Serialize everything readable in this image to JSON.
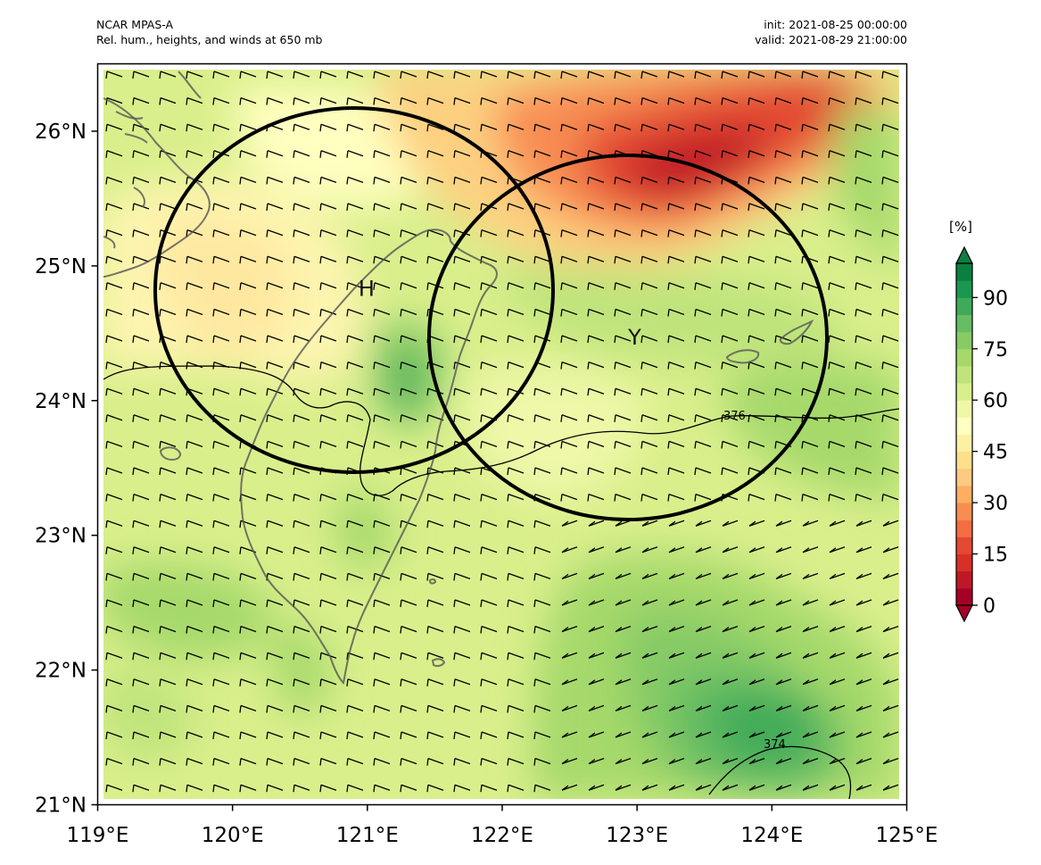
{
  "header": {
    "model": "NCAR MPAS-A",
    "subtitle": "Rel. hum., heights, and winds at 650 mb",
    "init": "init: 2021-08-25 00:00:00",
    "valid": "valid: 2021-08-29 21:00:00"
  },
  "map": {
    "lon_range": [
      119,
      125
    ],
    "lat_range": [
      21,
      26.5
    ],
    "lon_ticks": [
      "119°E",
      "120°E",
      "121°E",
      "122°E",
      "123°E",
      "124°E",
      "125°E"
    ],
    "lat_ticks": [
      "21°N",
      "22°N",
      "23°N",
      "24°N",
      "25°N",
      "26°N"
    ],
    "markers": [
      {
        "label": "H",
        "lon": 121.0,
        "lat": 24.83
      },
      {
        "label": "Y",
        "lon": 123.0,
        "lat": 24.47
      }
    ],
    "circles": [
      {
        "name": "circle-H",
        "center_lon": 120.93,
        "center_lat": 24.83,
        "radius_deg": 1.48
      },
      {
        "name": "circle-Y",
        "center_lon": 122.95,
        "center_lat": 24.45,
        "radius_deg": 1.48
      }
    ],
    "height_contours": [
      {
        "label": "376",
        "label_lon": 123.75,
        "label_lat": 23.88
      },
      {
        "label": "374",
        "label_lon": 124.07,
        "label_lat": 21.44
      }
    ]
  },
  "colorbar": {
    "unit": "[%]",
    "ticks": [
      "0",
      "15",
      "30",
      "45",
      "60",
      "75",
      "90"
    ],
    "colors": [
      "#a50026",
      "#be1826",
      "#d73027",
      "#e34933",
      "#f46d43",
      "#f88d52",
      "#fdae61",
      "#fec980",
      "#fee08b",
      "#fdf0a4",
      "#ffffbf",
      "#eff8a6",
      "#d9ef8b",
      "#c0e47c",
      "#a6d96a",
      "#86cb66",
      "#66bd63",
      "#3faa59",
      "#1a9850",
      "#0b7f40"
    ],
    "extend": "both"
  },
  "colors": {
    "frame": "#000000",
    "coast": "#555555",
    "circle": "#000000"
  }
}
